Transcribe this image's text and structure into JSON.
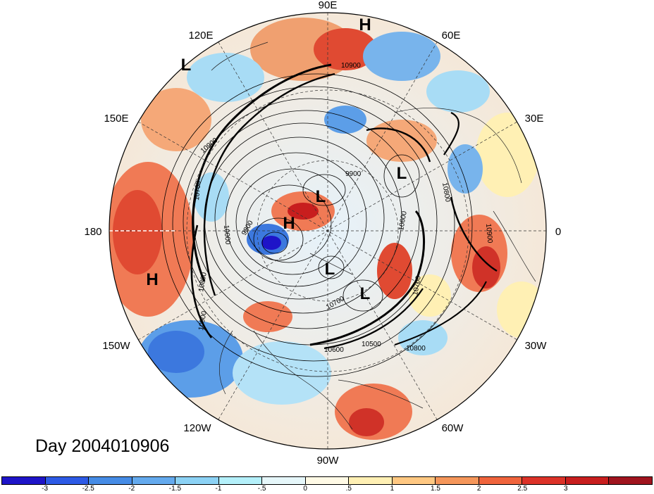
{
  "day_label": "Day 2004010906",
  "longitude_labels": {
    "e90": "90E",
    "e120": "120E",
    "e60": "60E",
    "e150": "150E",
    "e30": "30E",
    "lon180": "180",
    "lon0": "0",
    "w150": "150W",
    "w30": "30W",
    "w120": "120W",
    "w60": "60W",
    "w90": "90W"
  },
  "pressure_centers": {
    "h_top": "H",
    "l_upper_left": "L",
    "l_center": "L",
    "h_center": "H",
    "l_right": "L",
    "h_left": "H",
    "l_lower_center": "L",
    "l_lower_right": "L"
  },
  "contour_labels": {
    "c1": "10900",
    "c2": "10900",
    "c3": "9900",
    "c4": "9800",
    "c5": "10900",
    "c6": "10800",
    "c7": "10700",
    "c8": "10600",
    "c9": "10500",
    "c10": "10800",
    "c11": "10900",
    "c12": "10700",
    "c13": "10600",
    "c14": "10700",
    "c15": "10800",
    "c16": "10000"
  },
  "colorbar": {
    "colors": [
      "#1e14c8",
      "#2d5ae6",
      "#468ce6",
      "#64aaee",
      "#8cd2f5",
      "#b4f0fa",
      "#e6f7fa",
      "#fffae6",
      "#fff0b4",
      "#ffc882",
      "#f5965a",
      "#f0643c",
      "#dc3228",
      "#c81e1e",
      "#a0141e"
    ],
    "ticks": [
      "-3",
      "-2.5",
      "-2",
      "-1.5",
      "-1",
      "-.5",
      "0",
      ".5",
      "1",
      "1.5",
      "2",
      "2.5",
      "3"
    ]
  }
}
